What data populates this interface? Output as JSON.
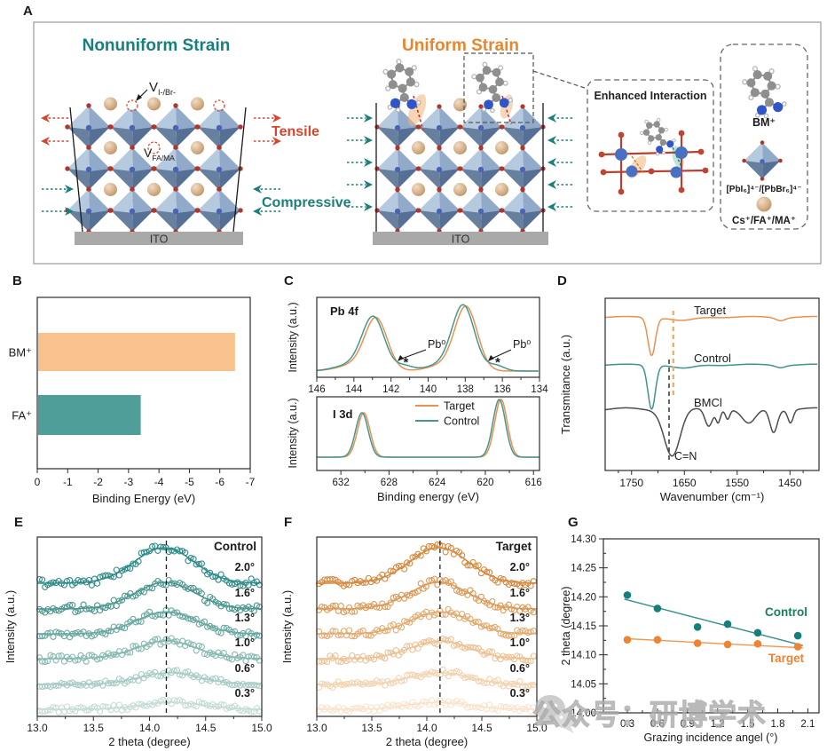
{
  "panel_labels": {
    "a": "A",
    "b": "B",
    "c": "C",
    "d": "D",
    "e": "E",
    "f": "F",
    "g": "G"
  },
  "panel_a": {
    "nonuniform_title": "Nonuniform Strain",
    "uniform_title": "Uniform Strain",
    "tensile": "Tensile",
    "compressive": "Compressive",
    "ito_left": "ITO",
    "ito_right": "ITO",
    "vacancy_halide_base": "V",
    "vacancy_halide_sub": "I-/Br-",
    "vacancy_a_base": "V",
    "vacancy_a_sub": "FA/MA",
    "enhanced_title": "Enhanced Interaction",
    "legend_bm": "BM⁺",
    "legend_octa": "[PbI₆]⁴⁻/[PbBr₆]⁴⁻",
    "legend_asite": "Cs⁺/FA⁺/MA⁺"
  },
  "colors": {
    "teal_title": "#17807c",
    "orange_title": "#e8862f",
    "red": "#d8452f",
    "bar_orange": "#f7c28e",
    "bar_teal": "#4f9e99",
    "target_line": "#eb9150",
    "control_line": "#46968f",
    "g_control_dot": "#157f7c",
    "g_target_dot": "#ee8433",
    "ito_gray": "#a9a9a9"
  },
  "chart_data": [
    {
      "id": "B",
      "type": "bar",
      "orientation": "horizontal",
      "categories": [
        "BM⁺",
        "FA⁺"
      ],
      "values": [
        -6.5,
        -3.4
      ],
      "bar_colors": [
        "#f7c28e",
        "#4f9e99"
      ],
      "xlabel": "Binding Energy (eV)",
      "xticks": [
        0,
        -1,
        -2,
        -3,
        -4,
        -5,
        -6,
        -7
      ],
      "xlim": [
        0,
        -7
      ]
    },
    {
      "id": "C-top",
      "type": "line",
      "label": "Pb 4f",
      "ylabel": "Intensity (a.u.)",
      "xlim": [
        146,
        134
      ],
      "xticks": [
        146,
        144,
        142,
        140,
        138,
        136,
        134
      ],
      "series": [
        {
          "name": "Target",
          "color": "#eb9150",
          "peaks": [
            {
              "center": 142.8,
              "sigma": 0.6,
              "amp": 0.82
            },
            {
              "center": 143.95,
              "sigma": 0.9,
              "amp": 0.1
            },
            {
              "center": 137.95,
              "sigma": 0.6,
              "amp": 1.0
            },
            {
              "center": 139.05,
              "sigma": 0.9,
              "amp": 0.1
            }
          ]
        },
        {
          "name": "Control",
          "color": "#46968f",
          "peaks": [
            {
              "center": 142.95,
              "sigma": 0.6,
              "amp": 0.84
            },
            {
              "center": 144.1,
              "sigma": 0.9,
              "amp": 0.1
            },
            {
              "center": 138.1,
              "sigma": 0.6,
              "amp": 1.02
            },
            {
              "center": 139.2,
              "sigma": 0.9,
              "amp": 0.1
            },
            {
              "center": 141.3,
              "sigma": 0.45,
              "amp": 0.08
            },
            {
              "center": 136.35,
              "sigma": 0.45,
              "amp": 0.09
            }
          ]
        }
      ],
      "annotations": [
        {
          "text": "Pb⁰",
          "star": 141.2
        },
        {
          "text": "Pb⁰",
          "star": 136.25
        }
      ]
    },
    {
      "id": "C-bottom",
      "type": "line",
      "label": "I 3d",
      "ylabel": "Intensity (a.u.)",
      "xlabel": "Binding energy (eV)",
      "xlim": [
        634,
        615.5
      ],
      "xticks": [
        632,
        628,
        624,
        620,
        616
      ],
      "legend": [
        "Target",
        "Control"
      ],
      "series": [
        {
          "name": "Target",
          "color": "#eb9150",
          "peaks": [
            {
              "center": 630.1,
              "sigma": 0.52,
              "amp": 0.77
            },
            {
              "center": 618.7,
              "sigma": 0.52,
              "amp": 1.0
            }
          ]
        },
        {
          "name": "Control",
          "color": "#46968f",
          "peaks": [
            {
              "center": 630.25,
              "sigma": 0.52,
              "amp": 0.77
            },
            {
              "center": 618.85,
              "sigma": 0.52,
              "amp": 1.0
            }
          ]
        }
      ]
    },
    {
      "id": "D",
      "type": "line",
      "ylabel": "Transmitance (a.u.)",
      "xlabel": "Wavenumber (cm⁻¹)",
      "xlim": [
        1800,
        1395
      ],
      "xticks": [
        1750,
        1650,
        1550,
        1450
      ],
      "dashed_guides": [
        {
          "x": 1679,
          "color": "#333333"
        },
        {
          "x": 1671,
          "color": "#f2a75f"
        }
      ],
      "annotation": "C=N",
      "series": [
        {
          "name": "Target",
          "color": "#eb9150",
          "base": 0.9,
          "dips": [
            {
              "center": 1712,
              "sigma": 7,
              "depth": 0.5
            },
            {
              "center": 1653,
              "sigma": 22,
              "depth": 0.05
            },
            {
              "center": 1468,
              "sigma": 9,
              "depth": 0.04
            }
          ]
        },
        {
          "name": "Control",
          "color": "#3f948e",
          "base": 0.62,
          "dips": [
            {
              "center": 1712,
              "sigma": 7,
              "depth": 0.58
            },
            {
              "center": 1650,
              "sigma": 20,
              "depth": 0.05
            },
            {
              "center": 1468,
              "sigma": 9,
              "depth": 0.03
            }
          ]
        },
        {
          "name": "BMCl",
          "color": "#4d4d4d",
          "base": 0.36,
          "dips": [
            {
              "center": 1673,
              "sigma": 15,
              "depth": 0.62
            },
            {
              "center": 1604,
              "sigma": 7,
              "depth": 0.22
            },
            {
              "center": 1586,
              "sigma": 4,
              "depth": 0.16
            },
            {
              "center": 1568,
              "sigma": 4,
              "depth": 0.12
            },
            {
              "center": 1528,
              "sigma": 13,
              "depth": 0.2
            },
            {
              "center": 1481,
              "sigma": 7,
              "depth": 0.3
            },
            {
              "center": 1449,
              "sigma": 5,
              "depth": 0.17
            }
          ]
        }
      ]
    },
    {
      "id": "E",
      "type": "gixrd",
      "title": "Control",
      "xlabel": "2 theta (degree)",
      "ylabel": "Intensity (a.u.)",
      "xlim": [
        13.0,
        15.0
      ],
      "xticks": [
        13.0,
        13.5,
        14.0,
        14.5,
        15.0
      ],
      "dashed_x": 14.15,
      "traces": [
        {
          "angle": "2.0°",
          "center": 14.13,
          "amp": 1.0,
          "color": "#2d8a87"
        },
        {
          "angle": "1.6°",
          "center": 14.14,
          "amp": 0.75,
          "color": "#4b968f"
        },
        {
          "angle": "1.3°",
          "center": 14.15,
          "amp": 0.62,
          "color": "#68a8a1"
        },
        {
          "angle": "1.0°",
          "center": 14.15,
          "amp": 0.5,
          "color": "#86b9b1"
        },
        {
          "angle": "0.6°",
          "center": 14.18,
          "amp": 0.33,
          "color": "#a8ccc5"
        },
        {
          "angle": "0.3°",
          "center": 14.2,
          "amp": 0.2,
          "color": "#c6dcd7"
        }
      ]
    },
    {
      "id": "F",
      "type": "gixrd",
      "title": "Target",
      "xlabel": "2 theta (degree)",
      "ylabel": "Intensity (a.u.)",
      "xlim": [
        13.0,
        15.0
      ],
      "xticks": [
        13.0,
        13.5,
        14.0,
        14.5,
        15.0
      ],
      "dashed_x": 14.12,
      "traces": [
        {
          "angle": "2.0°",
          "center": 14.11,
          "amp": 1.0,
          "color": "#d5893f"
        },
        {
          "angle": "1.6°",
          "center": 14.11,
          "amp": 0.75,
          "color": "#dc9a58"
        },
        {
          "angle": "1.3°",
          "center": 14.12,
          "amp": 0.62,
          "color": "#e3ab70"
        },
        {
          "angle": "1.0°",
          "center": 14.12,
          "amp": 0.5,
          "color": "#ecc295"
        },
        {
          "angle": "0.6°",
          "center": 14.12,
          "amp": 0.33,
          "color": "#f2d3b2"
        },
        {
          "angle": "0.3°",
          "center": 14.11,
          "amp": 0.2,
          "color": "#f8e4cd"
        }
      ]
    },
    {
      "id": "G",
      "type": "scatter",
      "xlabel": "Grazing incidence angel (°)",
      "ylabel": "2 theta (degree)",
      "ylim": [
        14.0,
        14.3
      ],
      "yticks": [
        14.0,
        14.05,
        14.1,
        14.15,
        14.2,
        14.25,
        14.3
      ],
      "xticks": [
        0.3,
        0.6,
        0.9,
        1.2,
        1.5,
        1.8,
        2.1
      ],
      "series": [
        {
          "name": "Control",
          "color": "#157f7c",
          "label_color": "#17805d",
          "x": [
            0.3,
            0.6,
            1.0,
            1.3,
            1.6,
            2.0
          ],
          "y": [
            14.203,
            14.18,
            14.148,
            14.153,
            14.138,
            14.133
          ],
          "fit": {
            "x1": 0.27,
            "y1": 14.196,
            "x2": 2.05,
            "y2": 14.116
          }
        },
        {
          "name": "Target",
          "color": "#ee8433",
          "label_color": "#ee8433",
          "x": [
            0.3,
            0.6,
            1.0,
            1.3,
            1.6,
            2.0
          ],
          "y": [
            14.126,
            14.126,
            14.12,
            14.118,
            14.119,
            14.114
          ],
          "fit": {
            "x1": 0.27,
            "y1": 14.128,
            "x2": 2.05,
            "y2": 14.112
          }
        }
      ]
    }
  ],
  "watermark": {
    "icon": "wechat-icon",
    "text": "公众号：研博学术"
  }
}
